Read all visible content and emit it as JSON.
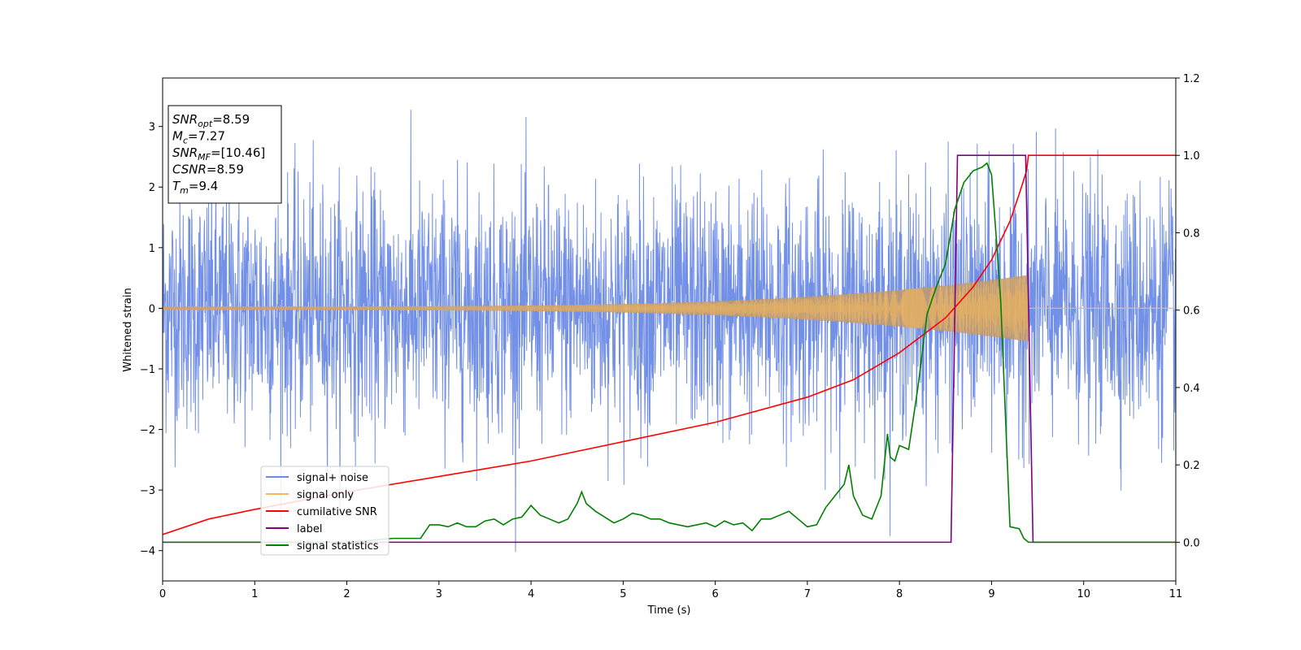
{
  "chart_data": {
    "type": "line",
    "title": "",
    "xlabel": "Time (s)",
    "ylabel": "Whitened strain",
    "xlim": [
      0,
      11
    ],
    "ylim": [
      -4.5,
      3.8
    ],
    "y2lim": [
      -0.1,
      1.2
    ],
    "x_ticks": [
      0,
      1,
      2,
      3,
      4,
      5,
      6,
      7,
      8,
      9,
      10,
      11
    ],
    "y_ticks": [
      -4,
      -3,
      -2,
      -1,
      0,
      1,
      2,
      3
    ],
    "y2_ticks": [
      0.0,
      0.2,
      0.4,
      0.6,
      0.8,
      1.0,
      1.2
    ],
    "y_tick_labels": [
      "−4",
      "−3",
      "−2",
      "−1",
      "0",
      "1",
      "2",
      "3"
    ],
    "y2_tick_labels": [
      "0.0",
      "0.2",
      "0.4",
      "0.6",
      "0.8",
      "1.0",
      "1.2"
    ],
    "grid": false,
    "legend_position": "lower-left",
    "series": [
      {
        "name": "signal+ noise",
        "axis": "left",
        "color": "#6b8ae6",
        "kind": "noise",
        "sigma": 1.0,
        "min": -4.2,
        "max": 3.45
      },
      {
        "name": "signal only",
        "axis": "left",
        "color": "#f5b75a",
        "kind": "chirp",
        "t_start": 0,
        "t_end": 9.4,
        "amplitude_start": 0.03,
        "amplitude_end": 0.55
      },
      {
        "name": "cumilative SNR",
        "axis": "right",
        "color": "#ff0000",
        "x": [
          0,
          0.5,
          1,
          2,
          3,
          4,
          5,
          6,
          7,
          7.5,
          8,
          8.5,
          8.8,
          9.0,
          9.2,
          9.3,
          9.38,
          9.4,
          11
        ],
        "y": [
          0.02,
          0.06,
          0.085,
          0.13,
          0.17,
          0.21,
          0.26,
          0.31,
          0.375,
          0.42,
          0.49,
          0.58,
          0.66,
          0.73,
          0.83,
          0.9,
          0.96,
          1.0,
          1.0
        ]
      },
      {
        "name": "label",
        "axis": "right",
        "color": "#800080",
        "x": [
          0,
          8.56,
          8.63,
          9.37,
          9.45,
          11
        ],
        "y": [
          0,
          0,
          1,
          1,
          0,
          0
        ]
      },
      {
        "name": "signal statistics",
        "axis": "right",
        "color": "#008000",
        "x": [
          0,
          1,
          2,
          2.5,
          2.8,
          2.9,
          3.0,
          3.1,
          3.2,
          3.3,
          3.4,
          3.5,
          3.6,
          3.7,
          3.8,
          3.9,
          4.0,
          4.1,
          4.2,
          4.3,
          4.4,
          4.5,
          4.55,
          4.6,
          4.7,
          4.8,
          4.9,
          5.0,
          5.1,
          5.2,
          5.3,
          5.4,
          5.5,
          5.6,
          5.7,
          5.8,
          5.9,
          6.0,
          6.1,
          6.2,
          6.3,
          6.4,
          6.5,
          6.6,
          6.7,
          6.8,
          6.9,
          7.0,
          7.1,
          7.2,
          7.3,
          7.4,
          7.45,
          7.5,
          7.6,
          7.7,
          7.8,
          7.87,
          7.9,
          7.95,
          8.0,
          8.1,
          8.2,
          8.3,
          8.4,
          8.5,
          8.6,
          8.7,
          8.8,
          8.9,
          8.95,
          9.0,
          9.05,
          9.1,
          9.2,
          9.3,
          9.35,
          9.4,
          9.5,
          11
        ],
        "y": [
          0.0,
          0.0,
          0.0,
          0.01,
          0.01,
          0.045,
          0.045,
          0.04,
          0.05,
          0.04,
          0.04,
          0.055,
          0.06,
          0.045,
          0.06,
          0.065,
          0.095,
          0.07,
          0.06,
          0.05,
          0.06,
          0.1,
          0.13,
          0.1,
          0.08,
          0.065,
          0.05,
          0.06,
          0.075,
          0.07,
          0.06,
          0.06,
          0.05,
          0.045,
          0.04,
          0.045,
          0.05,
          0.04,
          0.055,
          0.045,
          0.05,
          0.03,
          0.06,
          0.06,
          0.07,
          0.08,
          0.06,
          0.04,
          0.045,
          0.09,
          0.12,
          0.15,
          0.2,
          0.12,
          0.07,
          0.06,
          0.12,
          0.28,
          0.22,
          0.21,
          0.25,
          0.24,
          0.4,
          0.59,
          0.66,
          0.72,
          0.86,
          0.93,
          0.96,
          0.97,
          0.98,
          0.95,
          0.79,
          0.62,
          0.04,
          0.035,
          0.01,
          0.0,
          0.0,
          0.0
        ]
      }
    ]
  },
  "legend": {
    "items": [
      {
        "label": "signal+ noise",
        "color": "#6b8ae6"
      },
      {
        "label": "signal only",
        "color": "#f5b75a"
      },
      {
        "label": "cumilative SNR",
        "color": "#ff0000"
      },
      {
        "label": "label",
        "color": "#800080"
      },
      {
        "label": "signal statistics",
        "color": "#008000"
      }
    ]
  },
  "info_box": {
    "lines": [
      {
        "main": "SNR",
        "sub": "opt",
        "rest": "=8.59",
        "italic": true
      },
      {
        "main": "M",
        "sub": "c",
        "rest": "=7.27",
        "italic": true
      },
      {
        "main": "SNR",
        "sub": "MF",
        "rest": "=[10.46]",
        "italic": true
      },
      {
        "main": "CSNR",
        "sub": "",
        "rest": "=8.59",
        "italic": true
      },
      {
        "main": "T",
        "sub": "m",
        "rest": "=9.4",
        "italic": true
      }
    ]
  }
}
